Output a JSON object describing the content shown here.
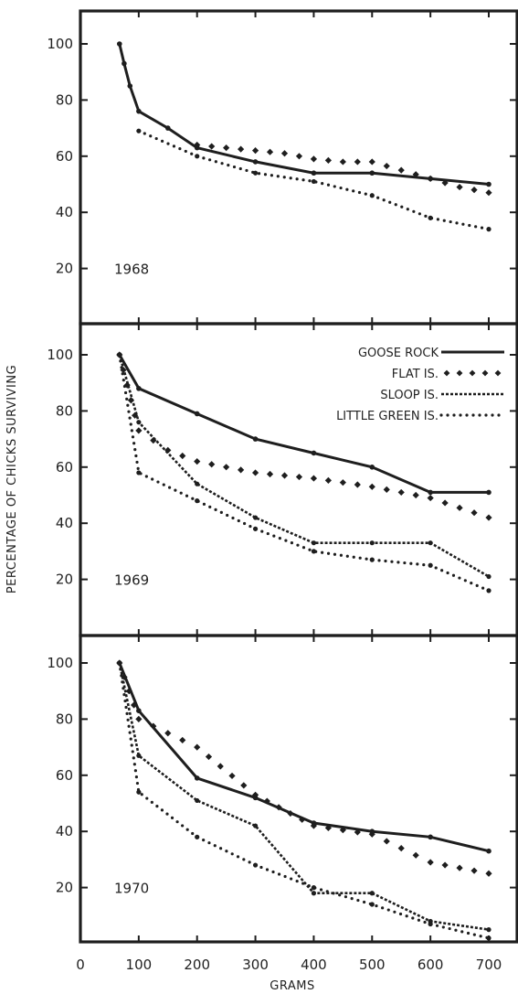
{
  "chart_data": [
    {
      "type": "line",
      "year_label": "1968",
      "xlim": [
        0,
        700
      ],
      "ylim": [
        0,
        110
      ],
      "y_ticks": [
        20,
        40,
        60,
        80,
        100
      ],
      "series": [
        {
          "style": "solid",
          "x": [
            67,
            75,
            85,
            100,
            150,
            200,
            300,
            400,
            500,
            600,
            700
          ],
          "y": [
            100,
            93,
            85,
            76,
            70,
            63,
            58,
            54,
            54,
            52,
            50
          ]
        },
        {
          "style": "diamond",
          "x": [
            200,
            250,
            300,
            350,
            400,
            450,
            500,
            550,
            600,
            650,
            700
          ],
          "y": [
            64,
            63,
            62,
            61,
            59,
            58,
            58,
            55,
            52,
            49,
            47
          ]
        },
        {
          "style": "dotted",
          "x": [
            100,
            200,
            300,
            400,
            500,
            600,
            700
          ],
          "y": [
            69,
            60,
            54,
            51,
            46,
            38,
            34
          ]
        }
      ]
    },
    {
      "type": "line",
      "year_label": "1969",
      "xlim": [
        0,
        700
      ],
      "ylim": [
        0,
        110
      ],
      "y_ticks": [
        20,
        40,
        60,
        80,
        100
      ],
      "legend": {
        "position": "top-right",
        "entries": [
          "GOOSE ROCK",
          "FLAT IS.",
          "SLOOP IS.",
          "LITTLE GREEN IS."
        ]
      },
      "series": [
        {
          "name": "GOOSE ROCK",
          "style": "solid",
          "x": [
            67,
            100,
            200,
            300,
            400,
            500,
            600,
            700
          ],
          "y": [
            100,
            88,
            79,
            70,
            65,
            60,
            51,
            51
          ]
        },
        {
          "name": "FLAT IS.",
          "style": "diamond",
          "x": [
            67,
            100,
            150,
            200,
            300,
            400,
            500,
            600,
            700
          ],
          "y": [
            100,
            73,
            66,
            62,
            58,
            56,
            53,
            49,
            42
          ]
        },
        {
          "name": "SLOOP IS.",
          "style": "dashed",
          "x": [
            67,
            100,
            200,
            300,
            400,
            500,
            600,
            700
          ],
          "y": [
            100,
            76,
            54,
            42,
            33,
            33,
            33,
            21
          ]
        },
        {
          "name": "LITTLE GREEN IS.",
          "style": "dotted",
          "x": [
            67,
            100,
            200,
            300,
            400,
            500,
            600,
            700
          ],
          "y": [
            100,
            58,
            48,
            38,
            30,
            27,
            25,
            16
          ]
        }
      ]
    },
    {
      "type": "line",
      "year_label": "1970",
      "xlim": [
        0,
        700
      ],
      "ylim": [
        0,
        110
      ],
      "y_ticks": [
        20,
        40,
        60,
        80,
        100
      ],
      "series": [
        {
          "style": "solid",
          "x": [
            67,
            100,
            200,
            300,
            400,
            500,
            600,
            700
          ],
          "y": [
            100,
            83,
            59,
            52,
            43,
            40,
            38,
            33
          ]
        },
        {
          "style": "diamond",
          "x": [
            67,
            100,
            200,
            300,
            400,
            500,
            600,
            700
          ],
          "y": [
            100,
            80,
            70,
            53,
            42,
            39,
            29,
            25
          ]
        },
        {
          "style": "dashed",
          "x": [
            67,
            100,
            200,
            300,
            400,
            500,
            600,
            700
          ],
          "y": [
            100,
            67,
            51,
            42,
            18,
            18,
            8,
            5
          ]
        },
        {
          "style": "dotted",
          "x": [
            67,
            100,
            200,
            300,
            400,
            500,
            600,
            700
          ],
          "y": [
            100,
            54,
            38,
            28,
            20,
            14,
            7,
            2
          ]
        }
      ]
    }
  ],
  "y_axis_label": "PERCENTAGE OF CHICKS SURVIVING",
  "x_axis_label": "GRAMS",
  "x_ticks": [
    0,
    100,
    200,
    300,
    400,
    500,
    600,
    700
  ]
}
